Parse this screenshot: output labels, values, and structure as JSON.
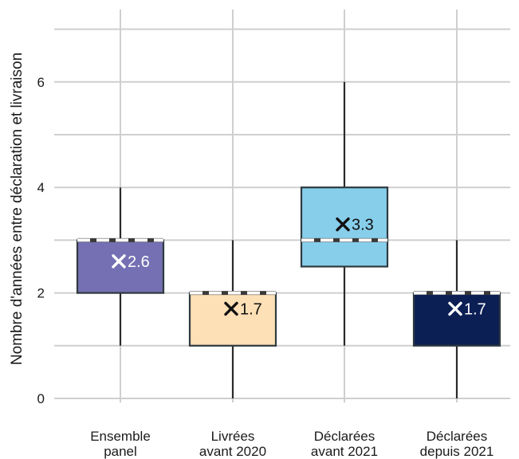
{
  "chart_data": {
    "type": "boxplot",
    "ylabel": "Nombre d'années entre déclaration et livraison",
    "yticks": [
      0,
      2,
      4,
      6
    ],
    "ylim": [
      -0.2,
      7.4
    ],
    "grid": true,
    "categories": [
      {
        "line1": "Ensemble",
        "line2": "panel"
      },
      {
        "line1": "Livrées",
        "line2": "avant 2020"
      },
      {
        "line1": "Déclarées",
        "line2": "avant 2021"
      },
      {
        "line1": "Déclarées",
        "line2": "depuis 2021"
      }
    ],
    "boxes": [
      {
        "whisker_low": 1,
        "q1": 2,
        "median": 3,
        "q3": 3,
        "whisker_high": 4,
        "mean": 2.6,
        "mean_label": "2.6",
        "color": "#7570b3",
        "marker_color": "#ffffff"
      },
      {
        "whisker_low": 0,
        "q1": 1,
        "median": 2,
        "q3": 2,
        "whisker_high": 3,
        "mean": 1.7,
        "mean_label": "1.7",
        "color": "#fde0b5",
        "marker_color": "#111111"
      },
      {
        "whisker_low": 1,
        "q1": 2.5,
        "median": 3,
        "q3": 4,
        "whisker_high": 6,
        "mean": 3.3,
        "mean_label": "3.3",
        "color": "#87ceeb",
        "marker_color": "#111111"
      },
      {
        "whisker_low": 0,
        "q1": 1,
        "median": 2,
        "q3": 2,
        "whisker_high": 3,
        "mean": 1.7,
        "mean_label": "1.7",
        "color": "#0c1f55",
        "marker_color": "#ffffff"
      }
    ]
  }
}
